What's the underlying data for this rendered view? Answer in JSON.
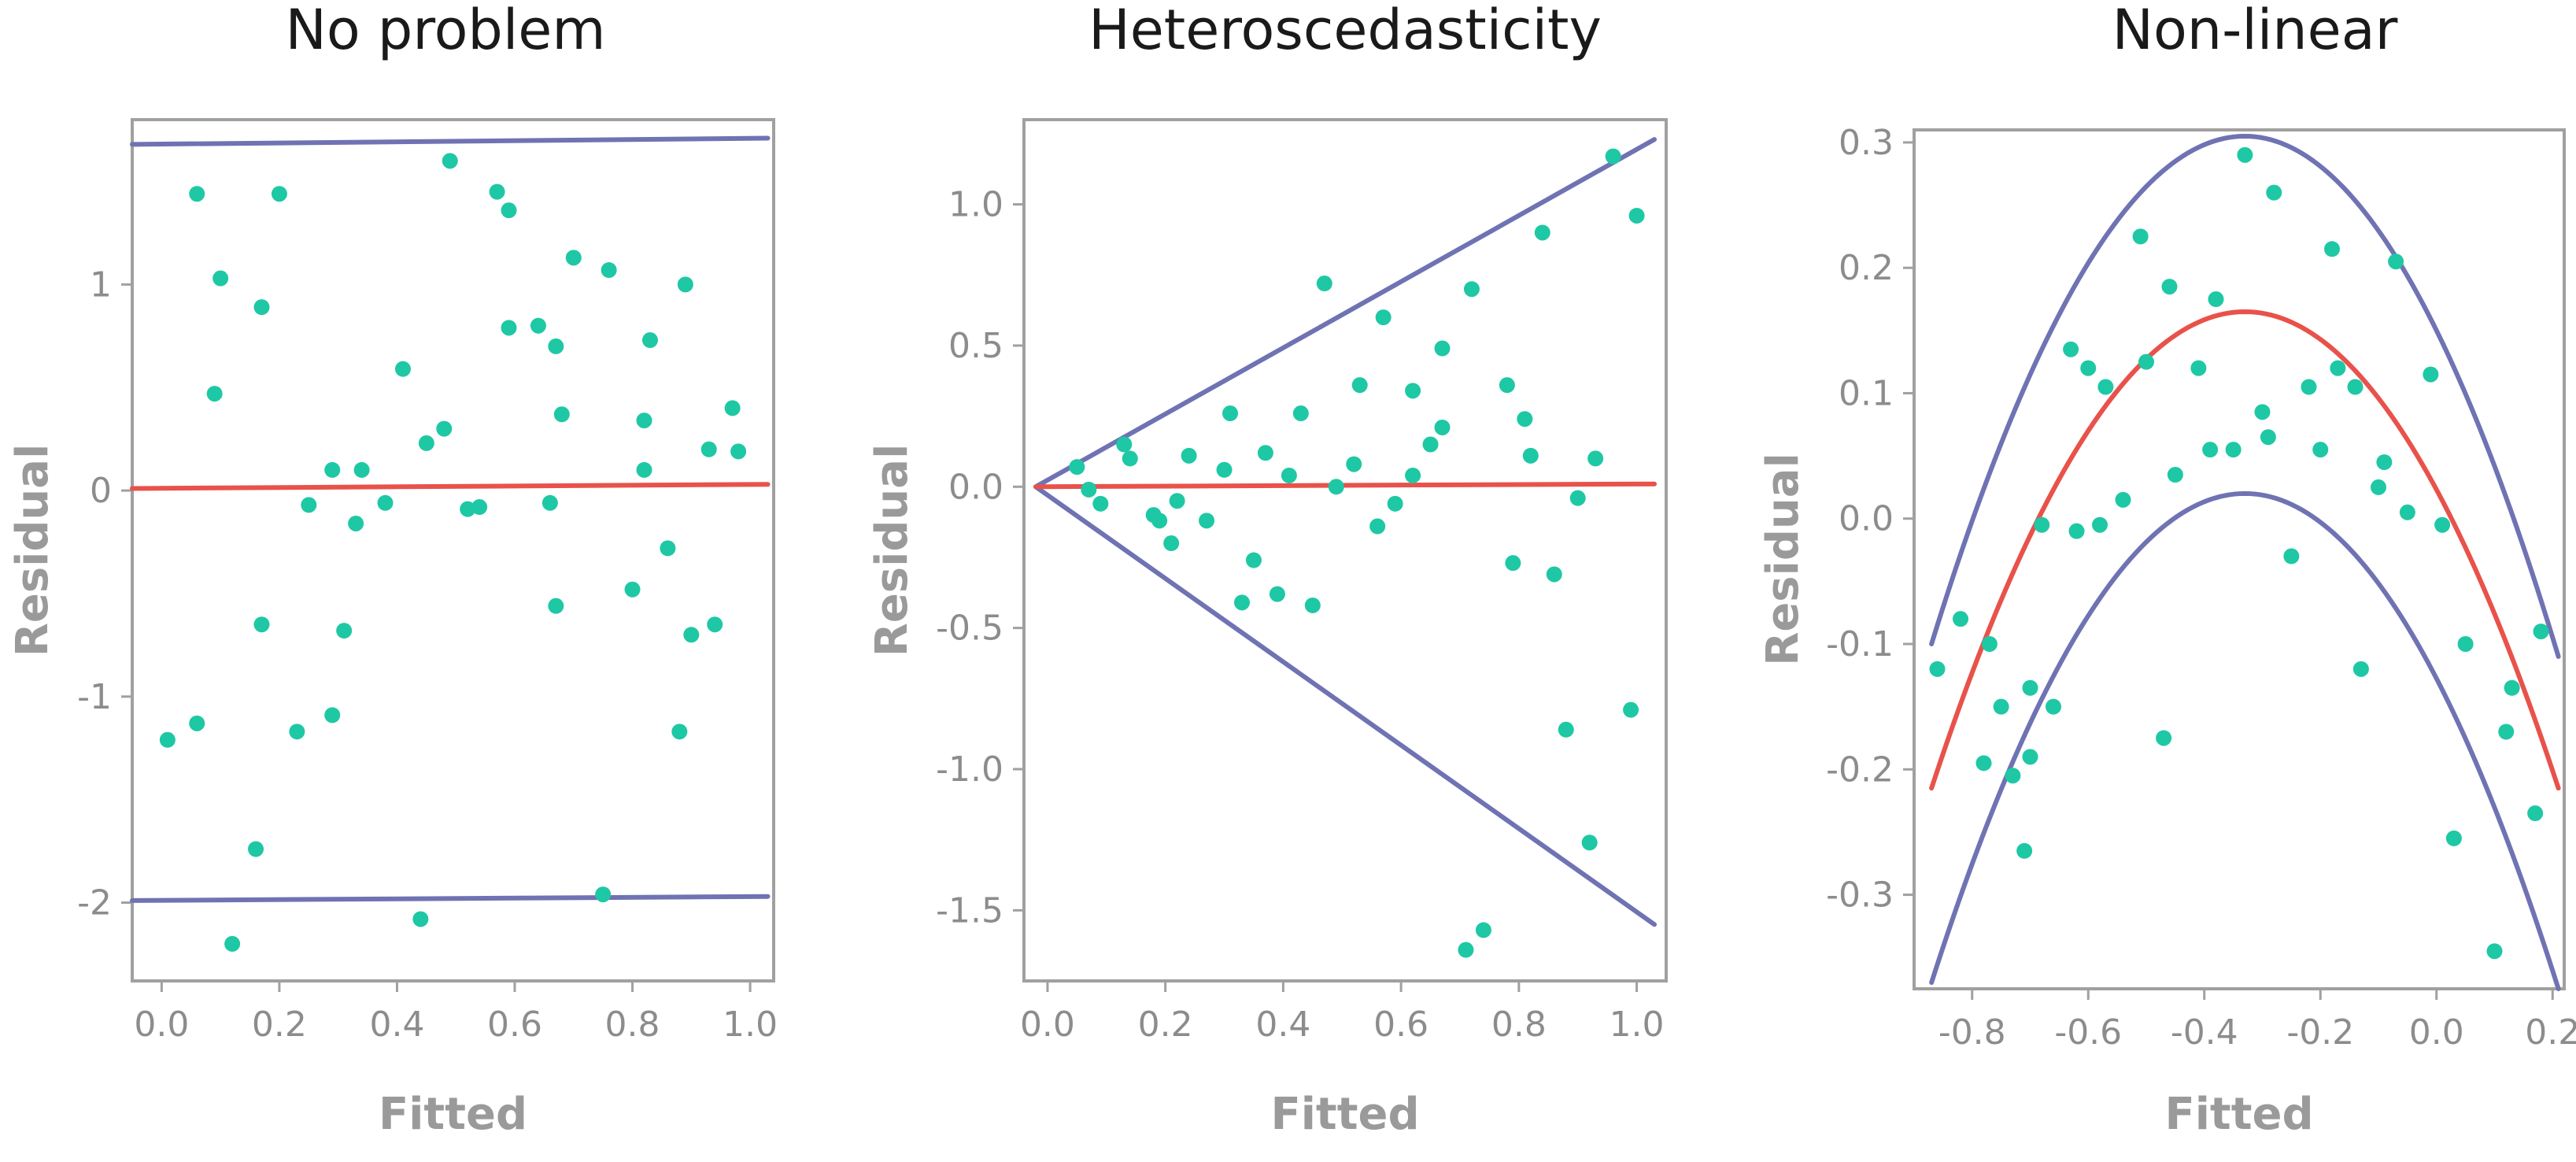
{
  "colors": {
    "point": "#1ec8a5",
    "fit_line": "#e8524a",
    "band_line": "#6f73b3",
    "frame": "#a0a0a0",
    "text": "#1a1a1a",
    "axis_label": "#9a9a9a",
    "tick_label": "#8c8c8c"
  },
  "chart_data": [
    {
      "type": "scatter",
      "title": "No problem",
      "xlabel": "Fitted",
      "ylabel": "Residual",
      "xlim": [
        -0.05,
        1.04
      ],
      "ylim": [
        -2.38,
        1.8
      ],
      "grid": false,
      "xticks": [
        0.0,
        0.2,
        0.4,
        0.6,
        0.8,
        1.0
      ],
      "xtick_labels": [
        "0.0",
        "0.2",
        "0.4",
        "0.6",
        "0.8",
        "1.0"
      ],
      "yticks": [
        -2,
        -1,
        0,
        1
      ],
      "ytick_labels": [
        "-2",
        "-1",
        "0",
        "1"
      ],
      "fit_line": [
        [
          -0.05,
          0.01
        ],
        [
          1.03,
          0.03
        ]
      ],
      "band_lines": [
        [
          [
            -0.05,
            1.68
          ],
          [
            1.03,
            1.71
          ]
        ],
        [
          [
            -0.05,
            -1.99
          ],
          [
            1.03,
            -1.97
          ]
        ]
      ],
      "points": [
        [
          0.01,
          -1.21
        ],
        [
          0.06,
          1.44
        ],
        [
          0.06,
          -1.13
        ],
        [
          0.09,
          0.47
        ],
        [
          0.1,
          1.03
        ],
        [
          0.12,
          -2.2
        ],
        [
          0.16,
          -1.74
        ],
        [
          0.17,
          0.89
        ],
        [
          0.17,
          -0.65
        ],
        [
          0.2,
          1.44
        ],
        [
          0.23,
          -1.17
        ],
        [
          0.25,
          -0.07
        ],
        [
          0.29,
          0.1
        ],
        [
          0.29,
          -1.09
        ],
        [
          0.31,
          -0.68
        ],
        [
          0.33,
          -0.16
        ],
        [
          0.34,
          0.1
        ],
        [
          0.38,
          -0.06
        ],
        [
          0.41,
          0.59
        ],
        [
          0.44,
          -2.08
        ],
        [
          0.45,
          0.23
        ],
        [
          0.48,
          0.3
        ],
        [
          0.49,
          1.6
        ],
        [
          0.52,
          -0.09
        ],
        [
          0.54,
          -0.08
        ],
        [
          0.57,
          1.45
        ],
        [
          0.59,
          1.36
        ],
        [
          0.59,
          0.79
        ],
        [
          0.64,
          0.8
        ],
        [
          0.66,
          -0.06
        ],
        [
          0.67,
          0.7
        ],
        [
          0.67,
          -0.56
        ],
        [
          0.68,
          0.37
        ],
        [
          0.7,
          1.13
        ],
        [
          0.75,
          -1.96
        ],
        [
          0.76,
          1.07
        ],
        [
          0.8,
          -0.48
        ],
        [
          0.82,
          0.34
        ],
        [
          0.82,
          0.1
        ],
        [
          0.83,
          0.73
        ],
        [
          0.86,
          -0.28
        ],
        [
          0.88,
          -1.17
        ],
        [
          0.89,
          1.0
        ],
        [
          0.9,
          -0.7
        ],
        [
          0.93,
          0.2
        ],
        [
          0.94,
          -0.65
        ],
        [
          0.97,
          0.4
        ],
        [
          0.98,
          0.19
        ]
      ]
    },
    {
      "type": "scatter",
      "title": "Heteroscedasticity",
      "xlabel": "Fitted",
      "ylabel": "Residual",
      "xlim": [
        -0.04,
        1.05
      ],
      "ylim": [
        -1.75,
        1.3
      ],
      "grid": false,
      "xticks": [
        0.0,
        0.2,
        0.4,
        0.6,
        0.8,
        1.0
      ],
      "xtick_labels": [
        "0.0",
        "0.2",
        "0.4",
        "0.6",
        "0.8",
        "1.0"
      ],
      "yticks": [
        -1.5,
        -1.0,
        -0.5,
        0.0,
        0.5,
        1.0
      ],
      "ytick_labels": [
        "-1.5",
        "-1.0",
        "-0.5",
        "0.0",
        "0.5",
        "1.0"
      ],
      "fit_line": [
        [
          -0.02,
          0.0
        ],
        [
          1.03,
          0.01
        ]
      ],
      "band_lines": [
        [
          [
            -0.02,
            0.0
          ],
          [
            1.03,
            1.23
          ]
        ],
        [
          [
            -0.02,
            0.0
          ],
          [
            1.03,
            -1.55
          ]
        ]
      ],
      "points": [
        [
          0.05,
          0.07
        ],
        [
          0.07,
          -0.01
        ],
        [
          0.09,
          -0.06
        ],
        [
          0.13,
          0.15
        ],
        [
          0.14,
          0.1
        ],
        [
          0.18,
          -0.1
        ],
        [
          0.19,
          -0.12
        ],
        [
          0.21,
          -0.2
        ],
        [
          0.22,
          -0.05
        ],
        [
          0.24,
          0.11
        ],
        [
          0.27,
          -0.12
        ],
        [
          0.3,
          0.06
        ],
        [
          0.31,
          0.26
        ],
        [
          0.33,
          -0.41
        ],
        [
          0.35,
          -0.26
        ],
        [
          0.37,
          0.12
        ],
        [
          0.39,
          -0.38
        ],
        [
          0.41,
          0.04
        ],
        [
          0.43,
          0.26
        ],
        [
          0.45,
          -0.42
        ],
        [
          0.47,
          0.72
        ],
        [
          0.49,
          0.0
        ],
        [
          0.52,
          0.08
        ],
        [
          0.53,
          0.36
        ],
        [
          0.56,
          -0.14
        ],
        [
          0.57,
          0.6
        ],
        [
          0.59,
          -0.06
        ],
        [
          0.62,
          0.04
        ],
        [
          0.62,
          0.34
        ],
        [
          0.65,
          0.15
        ],
        [
          0.67,
          0.49
        ],
        [
          0.67,
          0.21
        ],
        [
          0.71,
          -1.64
        ],
        [
          0.72,
          0.7
        ],
        [
          0.74,
          -1.57
        ],
        [
          0.78,
          0.36
        ],
        [
          0.79,
          -0.27
        ],
        [
          0.81,
          0.24
        ],
        [
          0.82,
          0.11
        ],
        [
          0.84,
          0.9
        ],
        [
          0.86,
          -0.31
        ],
        [
          0.88,
          -0.86
        ],
        [
          0.9,
          -0.04
        ],
        [
          0.92,
          -1.26
        ],
        [
          0.93,
          0.1
        ],
        [
          0.96,
          1.17
        ],
        [
          0.99,
          -0.79
        ],
        [
          1.0,
          0.96
        ]
      ]
    },
    {
      "type": "scatter",
      "title": "Non-linear",
      "xlabel": "Fitted",
      "ylabel": "Residual",
      "xlim": [
        -0.9,
        0.22
      ],
      "ylim": [
        -0.375,
        0.31
      ],
      "grid": false,
      "xticks": [
        -0.8,
        -0.6,
        -0.4,
        -0.2,
        0.0,
        0.2
      ],
      "xtick_labels": [
        "-0.8",
        "-0.6",
        "-0.4",
        "-0.2",
        "0.0",
        "0.2"
      ],
      "yticks": [
        -0.3,
        -0.2,
        -0.1,
        0.0,
        0.1,
        0.2,
        0.3
      ],
      "ytick_labels": [
        "-0.3",
        "-0.2",
        "-0.1",
        "0.0",
        "0.1",
        "0.2",
        "0.3"
      ],
      "fit_curve": {
        "vertex": [
          -0.33,
          0.165
        ],
        "endpoints": [
          [
            -0.87,
            -0.215
          ],
          [
            0.21,
            -0.215
          ]
        ]
      },
      "band_curves": [
        {
          "vertex": [
            -0.33,
            0.305
          ],
          "endpoints": [
            [
              -0.87,
              -0.1
            ],
            [
              0.21,
              -0.11
            ]
          ]
        },
        {
          "vertex": [
            -0.33,
            0.02
          ],
          "endpoints": [
            [
              -0.87,
              -0.37
            ],
            [
              0.21,
              -0.375
            ]
          ]
        }
      ],
      "points": [
        [
          -0.86,
          -0.12
        ],
        [
          -0.82,
          -0.08
        ],
        [
          -0.78,
          -0.195
        ],
        [
          -0.77,
          -0.1
        ],
        [
          -0.75,
          -0.15
        ],
        [
          -0.73,
          -0.205
        ],
        [
          -0.71,
          -0.265
        ],
        [
          -0.7,
          -0.19
        ],
        [
          -0.7,
          -0.135
        ],
        [
          -0.68,
          -0.005
        ],
        [
          -0.66,
          -0.15
        ],
        [
          -0.63,
          0.135
        ],
        [
          -0.62,
          -0.01
        ],
        [
          -0.6,
          0.12
        ],
        [
          -0.58,
          -0.005
        ],
        [
          -0.57,
          0.105
        ],
        [
          -0.54,
          0.015
        ],
        [
          -0.51,
          0.225
        ],
        [
          -0.5,
          0.125
        ],
        [
          -0.47,
          -0.175
        ],
        [
          -0.46,
          0.185
        ],
        [
          -0.45,
          0.035
        ],
        [
          -0.41,
          0.12
        ],
        [
          -0.39,
          0.055
        ],
        [
          -0.38,
          0.175
        ],
        [
          -0.35,
          0.055
        ],
        [
          -0.33,
          0.29
        ],
        [
          -0.3,
          0.085
        ],
        [
          -0.29,
          0.065
        ],
        [
          -0.28,
          0.26
        ],
        [
          -0.25,
          -0.03
        ],
        [
          -0.22,
          0.105
        ],
        [
          -0.2,
          0.055
        ],
        [
          -0.18,
          0.215
        ],
        [
          -0.17,
          0.12
        ],
        [
          -0.14,
          0.105
        ],
        [
          -0.13,
          -0.12
        ],
        [
          -0.1,
          0.025
        ],
        [
          -0.09,
          0.045
        ],
        [
          -0.07,
          0.205
        ],
        [
          -0.05,
          0.005
        ],
        [
          -0.01,
          0.115
        ],
        [
          0.01,
          -0.005
        ],
        [
          0.03,
          -0.255
        ],
        [
          0.05,
          -0.1
        ],
        [
          0.1,
          -0.345
        ],
        [
          0.12,
          -0.17
        ],
        [
          0.13,
          -0.135
        ],
        [
          0.17,
          -0.235
        ],
        [
          0.18,
          -0.09
        ]
      ]
    }
  ]
}
